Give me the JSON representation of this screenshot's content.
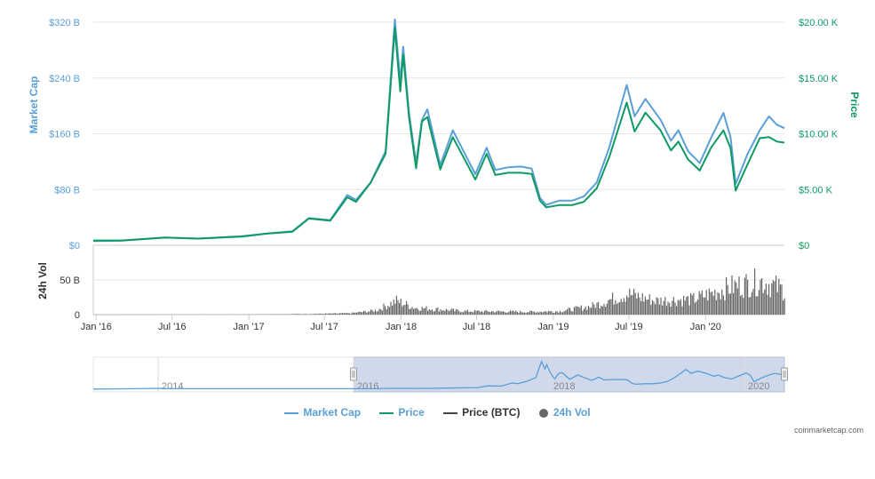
{
  "chart_data": {
    "type": "line",
    "x_range": [
      "2015-12-25",
      "2020-07-08"
    ],
    "colors": {
      "market_cap": "#5a9fd8",
      "price": "#0e9a63",
      "price_btc": "#444444",
      "volume": "#666666",
      "navigator_fill": "#c8d2e8"
    },
    "left_axis": {
      "label": "Market Cap",
      "ylim": [
        0,
        320
      ],
      "ticks": [
        "$0",
        "$80 B",
        "$160 B",
        "$240 B",
        "$320 B"
      ],
      "tick_values": [
        0,
        80,
        160,
        240,
        320
      ]
    },
    "right_axis": {
      "label": "Price",
      "ylim": [
        0,
        20
      ],
      "ticks": [
        "$0",
        "$5.00 K",
        "$10.00 K",
        "$15.00 K",
        "$20.00 K"
      ],
      "tick_values": [
        0,
        5,
        10,
        15,
        20
      ]
    },
    "volume_axis": {
      "label": "24h Vol",
      "ylim": [
        0,
        100
      ],
      "ticks": [
        "0",
        "50 B"
      ],
      "tick_values": [
        0,
        50
      ]
    },
    "x_ticks": [
      {
        "label": "Jan '16",
        "date": "2016-01-01"
      },
      {
        "label": "Jul '16",
        "date": "2016-07-01"
      },
      {
        "label": "Jan '17",
        "date": "2017-01-01"
      },
      {
        "label": "Jul '17",
        "date": "2017-07-01"
      },
      {
        "label": "Jan '18",
        "date": "2018-01-01"
      },
      {
        "label": "Jul '18",
        "date": "2018-07-01"
      },
      {
        "label": "Jan '19",
        "date": "2019-01-01"
      },
      {
        "label": "Jul '19",
        "date": "2019-07-01"
      },
      {
        "label": "Jan '20",
        "date": "2020-01-01"
      }
    ],
    "series": [
      {
        "name": "Market Cap",
        "unit": "B USD",
        "points": [
          [
            "2015-12-25",
            6
          ],
          [
            "2016-03-01",
            6.5
          ],
          [
            "2016-06-15",
            11
          ],
          [
            "2016-09-01",
            9.5
          ],
          [
            "2016-12-15",
            13
          ],
          [
            "2017-02-15",
            17
          ],
          [
            "2017-04-15",
            20
          ],
          [
            "2017-05-25",
            39
          ],
          [
            "2017-07-15",
            36
          ],
          [
            "2017-08-25",
            72
          ],
          [
            "2017-09-15",
            65
          ],
          [
            "2017-10-20",
            90
          ],
          [
            "2017-11-25",
            135
          ],
          [
            "2017-12-17",
            324
          ],
          [
            "2017-12-30",
            235
          ],
          [
            "2018-01-06",
            285
          ],
          [
            "2018-01-20",
            190
          ],
          [
            "2018-02-06",
            118
          ],
          [
            "2018-02-20",
            180
          ],
          [
            "2018-03-05",
            195
          ],
          [
            "2018-04-05",
            115
          ],
          [
            "2018-05-05",
            165
          ],
          [
            "2018-06-28",
            102
          ],
          [
            "2018-07-25",
            140
          ],
          [
            "2018-08-15",
            108
          ],
          [
            "2018-09-15",
            112
          ],
          [
            "2018-10-15",
            113
          ],
          [
            "2018-11-10",
            110
          ],
          [
            "2018-11-30",
            68
          ],
          [
            "2018-12-15",
            58
          ],
          [
            "2019-01-15",
            64
          ],
          [
            "2019-02-15",
            64
          ],
          [
            "2019-03-15",
            70
          ],
          [
            "2019-04-15",
            90
          ],
          [
            "2019-05-15",
            140
          ],
          [
            "2019-06-26",
            230
          ],
          [
            "2019-07-15",
            185
          ],
          [
            "2019-08-10",
            210
          ],
          [
            "2019-09-15",
            180
          ],
          [
            "2019-10-10",
            150
          ],
          [
            "2019-10-28",
            165
          ],
          [
            "2019-11-20",
            135
          ],
          [
            "2019-12-18",
            118
          ],
          [
            "2020-01-15",
            155
          ],
          [
            "2020-02-13",
            190
          ],
          [
            "2020-03-01",
            155
          ],
          [
            "2020-03-13",
            88
          ],
          [
            "2020-04-10",
            130
          ],
          [
            "2020-05-10",
            165
          ],
          [
            "2020-06-01",
            185
          ],
          [
            "2020-06-20",
            173
          ],
          [
            "2020-07-08",
            168
          ]
        ]
      },
      {
        "name": "Price",
        "unit": "K USD",
        "points": [
          [
            "2015-12-25",
            0.43
          ],
          [
            "2016-03-01",
            0.43
          ],
          [
            "2016-06-15",
            0.7
          ],
          [
            "2016-09-01",
            0.6
          ],
          [
            "2016-12-15",
            0.78
          ],
          [
            "2017-02-15",
            1.05
          ],
          [
            "2017-04-15",
            1.2
          ],
          [
            "2017-05-25",
            2.4
          ],
          [
            "2017-07-15",
            2.2
          ],
          [
            "2017-08-25",
            4.3
          ],
          [
            "2017-09-15",
            3.9
          ],
          [
            "2017-10-20",
            5.6
          ],
          [
            "2017-11-25",
            8.2
          ],
          [
            "2017-12-17",
            19.5
          ],
          [
            "2017-12-30",
            13.8
          ],
          [
            "2018-01-06",
            17.1
          ],
          [
            "2018-01-20",
            11.5
          ],
          [
            "2018-02-06",
            6.9
          ],
          [
            "2018-02-20",
            11.1
          ],
          [
            "2018-03-05",
            11.5
          ],
          [
            "2018-04-05",
            6.8
          ],
          [
            "2018-05-05",
            9.7
          ],
          [
            "2018-06-28",
            5.9
          ],
          [
            "2018-07-25",
            8.2
          ],
          [
            "2018-08-15",
            6.3
          ],
          [
            "2018-09-15",
            6.5
          ],
          [
            "2018-10-15",
            6.5
          ],
          [
            "2018-11-10",
            6.4
          ],
          [
            "2018-11-30",
            4.0
          ],
          [
            "2018-12-15",
            3.4
          ],
          [
            "2019-01-15",
            3.6
          ],
          [
            "2019-02-15",
            3.6
          ],
          [
            "2019-03-15",
            3.9
          ],
          [
            "2019-04-15",
            5.1
          ],
          [
            "2019-05-15",
            7.9
          ],
          [
            "2019-06-26",
            12.8
          ],
          [
            "2019-07-15",
            10.2
          ],
          [
            "2019-08-10",
            11.9
          ],
          [
            "2019-09-15",
            10.3
          ],
          [
            "2019-10-10",
            8.5
          ],
          [
            "2019-10-28",
            9.3
          ],
          [
            "2019-11-20",
            7.7
          ],
          [
            "2019-12-18",
            6.7
          ],
          [
            "2020-01-15",
            8.8
          ],
          [
            "2020-02-13",
            10.3
          ],
          [
            "2020-03-01",
            8.7
          ],
          [
            "2020-03-13",
            4.9
          ],
          [
            "2020-04-10",
            7.2
          ],
          [
            "2020-05-10",
            9.6
          ],
          [
            "2020-06-01",
            9.7
          ],
          [
            "2020-06-20",
            9.3
          ],
          [
            "2020-07-08",
            9.2
          ]
        ]
      },
      {
        "name": "Price (BTC)"
      },
      {
        "name": "24h Vol",
        "unit": "B USD",
        "points": [
          [
            "2015-12-25",
            0.1
          ],
          [
            "2017-01-01",
            0.3
          ],
          [
            "2017-06-01",
            1
          ],
          [
            "2017-09-01",
            2
          ],
          [
            "2017-11-01",
            6
          ],
          [
            "2017-12-20",
            20
          ],
          [
            "2018-02-01",
            10
          ],
          [
            "2018-06-01",
            5
          ],
          [
            "2018-11-01",
            4
          ],
          [
            "2019-01-15",
            5
          ],
          [
            "2019-04-01",
            12
          ],
          [
            "2019-06-26",
            30
          ],
          [
            "2019-09-01",
            20
          ],
          [
            "2019-12-01",
            22
          ],
          [
            "2020-03-01",
            40
          ],
          [
            "2020-05-15",
            48
          ],
          [
            "2020-07-08",
            35
          ]
        ]
      }
    ],
    "navigator": {
      "tick_labels": [
        "2014",
        "2016",
        "2018",
        "2020"
      ],
      "selection_start": "2015-12-25",
      "selection_end": "2020-07-08"
    }
  },
  "legend": [
    {
      "label": "Market Cap",
      "color": "#5a9fd8",
      "marker": "line"
    },
    {
      "label": "Price",
      "color": "#0e9a63",
      "marker": "line"
    },
    {
      "label": "Price (BTC)",
      "color": "#444444",
      "marker": "line"
    },
    {
      "label": "24h Vol",
      "color": "#666666",
      "marker": "dot"
    }
  ],
  "credit": "coinmarketcap.com"
}
